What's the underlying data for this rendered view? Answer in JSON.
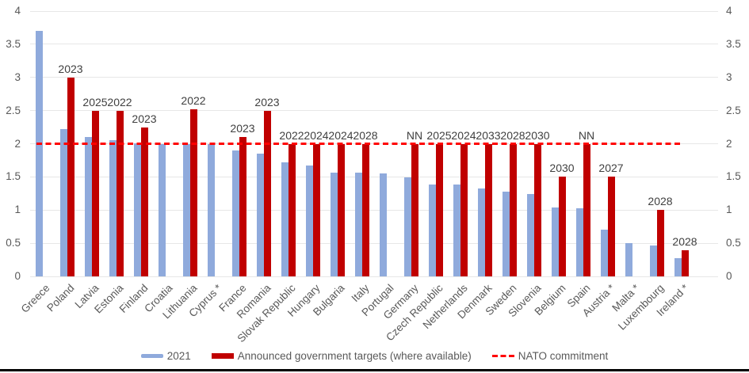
{
  "chart_data": {
    "type": "bar",
    "title": "",
    "categories": [
      "Greece",
      "Poland",
      "Latvia",
      "Estonia",
      "Finland",
      "Croatia",
      "Lithuania",
      "Cyprus *",
      "France",
      "Romania",
      "Slovak Republic",
      "Hungary",
      "Bulgaria",
      "Italy",
      "Portugal",
      "Germany",
      "Czech Republic",
      "Netherlands",
      "Denmark",
      "Sweden",
      "Slovenia",
      "Belgium",
      "Spain",
      "Austria *",
      "Malta *",
      "Luxembourg",
      "Ireland *"
    ],
    "series": [
      {
        "name": "2021",
        "color": "#8FAADC",
        "values": [
          3.7,
          2.22,
          2.1,
          2.05,
          2.01,
          2.0,
          2.0,
          1.99,
          1.9,
          1.85,
          1.72,
          1.67,
          1.57,
          1.57,
          1.55,
          1.49,
          1.39,
          1.38,
          1.33,
          1.28,
          1.24,
          1.04,
          1.03,
          0.7,
          0.5,
          0.46,
          0.27
        ]
      },
      {
        "name": "Announced government targets (where available)",
        "color": "#C00000",
        "values": [
          null,
          3.0,
          2.5,
          2.5,
          2.25,
          null,
          2.52,
          null,
          2.1,
          2.5,
          2.0,
          2.0,
          2.0,
          2.0,
          null,
          2.0,
          2.0,
          2.0,
          2.0,
          2.0,
          2.0,
          1.5,
          2.0,
          1.5,
          null,
          1.0,
          0.4
        ],
        "point_labels": [
          null,
          "2023",
          "2025",
          "2022",
          "2023",
          null,
          "2022",
          null,
          "2023",
          "2023",
          "2022",
          "2024",
          "2024",
          "2028",
          null,
          "NN",
          "2025",
          "2024",
          "2033",
          "2028",
          "2030",
          "2030",
          "NN",
          "2027",
          null,
          "2028",
          "2028"
        ]
      }
    ],
    "reference_line": {
      "name": "NATO commitment",
      "value": 2,
      "color": "#FF0000",
      "style": "dashed"
    },
    "y_axis": {
      "min": 0,
      "max": 4,
      "step": 0.5,
      "ticks": [
        "0",
        "0.5",
        "1",
        "1.5",
        "2",
        "2.5",
        "3",
        "3.5",
        "4"
      ],
      "sides": [
        "left",
        "right"
      ]
    },
    "grid": true,
    "legend_position": "bottom"
  },
  "colors": {
    "grid": "#E7E7E7",
    "axis_text": "#595959",
    "annotation_text": "#404040",
    "bottom_rule": "#000000"
  }
}
